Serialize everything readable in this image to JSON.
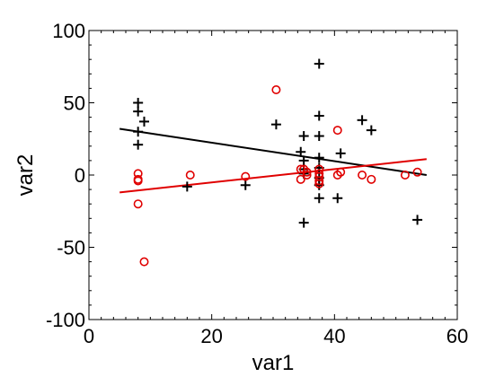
{
  "chart_data": {
    "type": "scatter",
    "title": "",
    "xlabel": "var1",
    "ylabel": "var2",
    "xlim": [
      0,
      60
    ],
    "ylim": [
      -100,
      100
    ],
    "xticks": [
      "0",
      "20",
      "40",
      "60"
    ],
    "yticks": [
      "100",
      "50",
      "0",
      "-50",
      "-100"
    ],
    "grid": false,
    "series": [
      {
        "marker": "plus",
        "color": "#000000",
        "points": [
          [
            8,
            50
          ],
          [
            8,
            44
          ],
          [
            8,
            30
          ],
          [
            8,
            21
          ],
          [
            9,
            37
          ],
          [
            16,
            -8
          ],
          [
            25.5,
            -7
          ],
          [
            30.5,
            35
          ],
          [
            34.5,
            16
          ],
          [
            35,
            27
          ],
          [
            35,
            10
          ],
          [
            35,
            4
          ],
          [
            35,
            -33
          ],
          [
            35,
            1
          ],
          [
            37.5,
            77
          ],
          [
            37.5,
            41
          ],
          [
            37.5,
            27
          ],
          [
            37.5,
            12
          ],
          [
            37.5,
            5
          ],
          [
            37.5,
            -2
          ],
          [
            37.5,
            -7
          ],
          [
            37.5,
            -16
          ],
          [
            40.5,
            -16
          ],
          [
            41,
            15
          ],
          [
            44.5,
            38
          ],
          [
            46,
            31
          ],
          [
            53.5,
            -31
          ]
        ],
        "fit": [
          [
            5,
            32
          ],
          [
            55,
            0
          ]
        ]
      },
      {
        "marker": "circle",
        "color": "#e00000",
        "points": [
          [
            8,
            1
          ],
          [
            8,
            -3
          ],
          [
            8,
            -4
          ],
          [
            8,
            -20
          ],
          [
            9,
            -60
          ],
          [
            16.5,
            0
          ],
          [
            25.5,
            -1
          ],
          [
            30.5,
            59
          ],
          [
            34.5,
            4
          ],
          [
            34.5,
            -3
          ],
          [
            35,
            4
          ],
          [
            35.5,
            2
          ],
          [
            35.5,
            0
          ],
          [
            37.5,
            4
          ],
          [
            37.5,
            1
          ],
          [
            37.5,
            -1
          ],
          [
            37.5,
            -4
          ],
          [
            37.5,
            -6
          ],
          [
            40.5,
            31
          ],
          [
            40.5,
            0
          ],
          [
            41,
            2
          ],
          [
            44.5,
            0
          ],
          [
            46,
            -3
          ],
          [
            51.5,
            0
          ],
          [
            53.5,
            2
          ]
        ],
        "fit": [
          [
            5,
            -12
          ],
          [
            55,
            11
          ]
        ]
      }
    ]
  }
}
